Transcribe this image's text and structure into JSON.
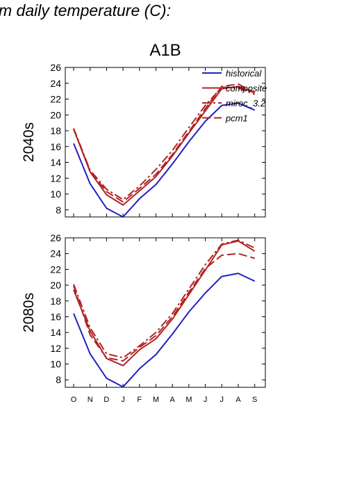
{
  "header_title": "m daily temperature (C):",
  "chart_data": {
    "type": "line",
    "title": "A1B",
    "categories": [
      "O",
      "N",
      "D",
      "J",
      "F",
      "M",
      "A",
      "M",
      "J",
      "J",
      "A",
      "S"
    ],
    "legend_position": "top-right",
    "grid": false,
    "legend": [
      {
        "name": "historical",
        "style": "solid",
        "color": "#1f1fbf"
      },
      {
        "name": "composite",
        "style": "solid",
        "color": "#b22222"
      },
      {
        "name": "miroc_3.2",
        "style": "dashdot",
        "color": "#b22222"
      },
      {
        "name": "pcm1",
        "style": "dashed",
        "color": "#b22222"
      }
    ],
    "panels": [
      {
        "ylabel": "2040s",
        "ylim": [
          7,
          26
        ],
        "yticks": [
          8,
          10,
          12,
          14,
          16,
          18,
          20,
          22,
          24,
          26
        ],
        "series": [
          {
            "name": "historical",
            "style": "solid",
            "color": "#1f1fbf",
            "values": [
              16.4,
              11.3,
              8.2,
              7.1,
              9.4,
              11.2,
              13.8,
              16.6,
              19.2,
              21.2,
              21.5,
              20.6
            ]
          },
          {
            "name": "composite",
            "style": "solid",
            "color": "#b22222",
            "values": [
              18.2,
              12.8,
              9.9,
              8.6,
              10.4,
              12.2,
              14.8,
              17.7,
              20.5,
              23.3,
              23.6,
              22.8
            ]
          },
          {
            "name": "miroc_3.2",
            "style": "dashdot",
            "color": "#b22222",
            "values": [
              18.3,
              13.0,
              10.6,
              9.3,
              11.0,
              13.1,
              15.5,
              18.4,
              21.2,
              23.5,
              23.4,
              22.6
            ]
          },
          {
            "name": "pcm1",
            "style": "dashed",
            "color": "#b22222",
            "values": [
              18.2,
              12.9,
              10.3,
              9.0,
              10.7,
              12.5,
              15.0,
              17.9,
              20.8,
              23.6,
              23.9,
              22.8
            ]
          }
        ]
      },
      {
        "ylabel": "2080s",
        "ylim": [
          7,
          26
        ],
        "yticks": [
          8,
          10,
          12,
          14,
          16,
          18,
          20,
          22,
          24,
          26
        ],
        "series": [
          {
            "name": "historical",
            "style": "solid",
            "color": "#1f1fbf",
            "values": [
              16.4,
              11.3,
              8.2,
              7.1,
              9.4,
              11.2,
              13.8,
              16.6,
              19.0,
              21.1,
              21.5,
              20.5
            ]
          },
          {
            "name": "composite",
            "style": "solid",
            "color": "#b22222",
            "values": [
              19.4,
              14.2,
              10.7,
              9.8,
              11.8,
              13.2,
              15.7,
              18.8,
              21.9,
              25.1,
              25.6,
              24.3
            ]
          },
          {
            "name": "miroc_3.2",
            "style": "dashdot",
            "color": "#b22222",
            "values": [
              20.1,
              14.6,
              11.3,
              10.8,
              12.3,
              14.0,
              16.4,
              19.5,
              22.6,
              25.2,
              25.7,
              24.7
            ]
          },
          {
            "name": "pcm1",
            "style": "dashed",
            "color": "#b22222",
            "values": [
              19.9,
              13.7,
              10.8,
              10.4,
              12.1,
              13.6,
              16.0,
              19.1,
              22.1,
              23.8,
              24.0,
              23.4
            ]
          }
        ]
      }
    ]
  }
}
